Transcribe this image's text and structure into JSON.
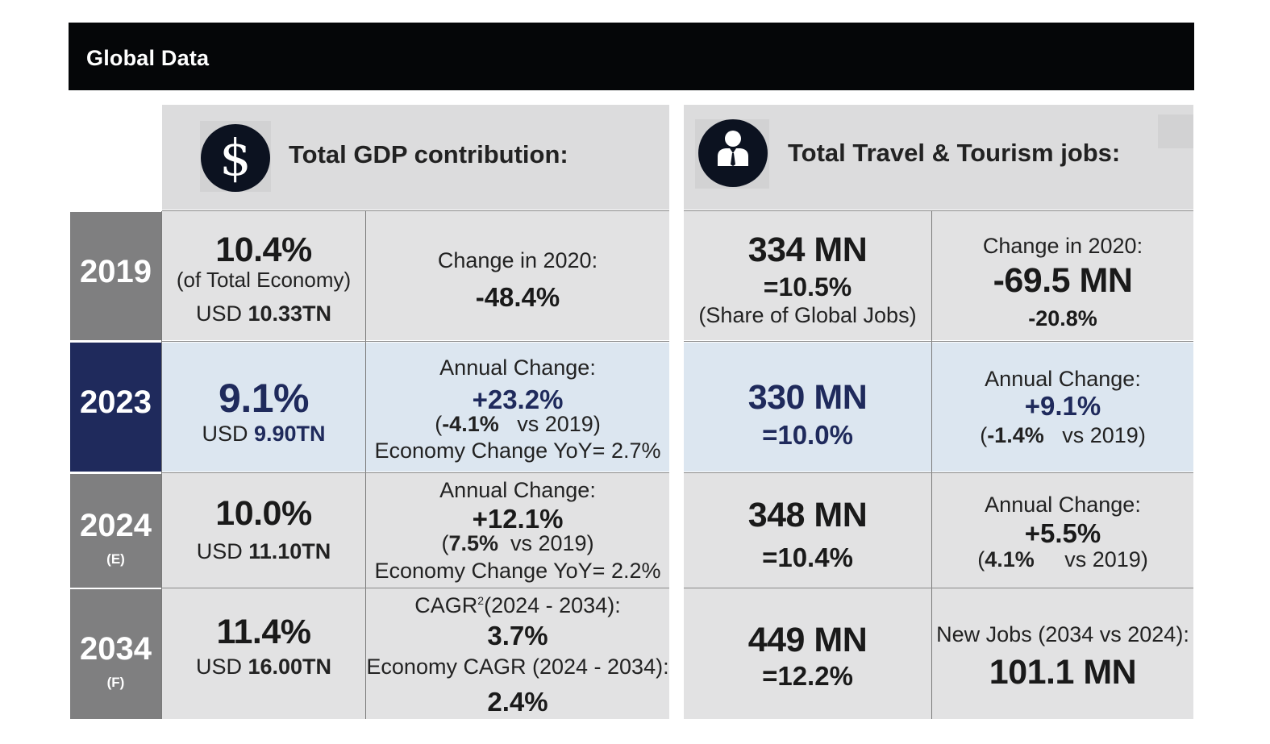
{
  "header": {
    "title": "Global Data"
  },
  "gdp": {
    "heading": "Total GDP contribution:",
    "icon": "dollar-icon",
    "icon_glyph": "$"
  },
  "jobs": {
    "heading": "Total Travel & Tourism jobs:",
    "icon": "businessman-icon"
  },
  "colors": {
    "navy": "#1f2a5c",
    "gray": "#7f7f80",
    "highlight": "#dce6f0",
    "cell": "#e2e2e3",
    "header": "#050608"
  },
  "rows": [
    {
      "year": "2019",
      "suffix": "",
      "gdp_pct": "10.4%",
      "gdp_note": "(of Total Economy)",
      "usd_prefix": "USD ",
      "usd_value": "10.33TN",
      "change_label": "Change in 2020:",
      "change_value": "-48.4%",
      "jobs_value": "334 MN",
      "jobs_share": "=10.5%",
      "jobs_note": "(Share of Global Jobs)",
      "jobs_change_label": "Change in 2020:",
      "jobs_change_value": "-69.5 MN",
      "jobs_change_pct": "-20.8%"
    },
    {
      "year": "2023",
      "suffix": "",
      "gdp_pct": "9.1%",
      "usd_prefix": "USD ",
      "usd_value": "9.90TN",
      "change_label": "Annual Change:",
      "change_value": "+23.2%",
      "change_vs_open": "(",
      "change_vs_pct": "-4.1%",
      "change_vs_tail": "vs 2019)",
      "economy_change": "Economy Change YoY= 2.7%",
      "jobs_value": "330 MN",
      "jobs_share": "=10.0%",
      "jobs_change_label": "Annual Change:",
      "jobs_change_value": "+9.1%",
      "jobs_vs_open": "(",
      "jobs_vs_pct": "-1.4%",
      "jobs_vs_tail": "vs 2019)"
    },
    {
      "year": "2024",
      "suffix": "(E)",
      "gdp_pct": "10.0%",
      "usd_prefix": "USD ",
      "usd_value": "11.10TN",
      "change_label": "Annual Change:",
      "change_value": "+12.1%",
      "change_vs_open": "(",
      "change_vs_pct": "7.5%",
      "change_vs_tail": "vs 2019)",
      "economy_change": "Economy Change YoY= 2.2%",
      "jobs_value": "348 MN",
      "jobs_share": "=10.4%",
      "jobs_change_label": "Annual Change:",
      "jobs_change_value": "+5.5%",
      "jobs_vs_open": "(",
      "jobs_vs_pct": "4.1%",
      "jobs_vs_tail": "vs 2019)"
    },
    {
      "year": "2034",
      "suffix": "(F)",
      "gdp_pct": "11.4%",
      "usd_prefix": "USD ",
      "usd_value": "16.00TN",
      "cagr_label": "CAGR",
      "cagr_sup": "2",
      "cagr_range": "(2024 - 2034):",
      "cagr_value": "3.7%",
      "economy_cagr_label": "Economy CAGR (2024 - 2034):",
      "economy_cagr_value": "2.4%",
      "jobs_value": "449 MN",
      "jobs_share": "=12.2%",
      "new_jobs_label": "New Jobs (2034 vs 2024):",
      "new_jobs_value": "101.1 MN"
    }
  ]
}
